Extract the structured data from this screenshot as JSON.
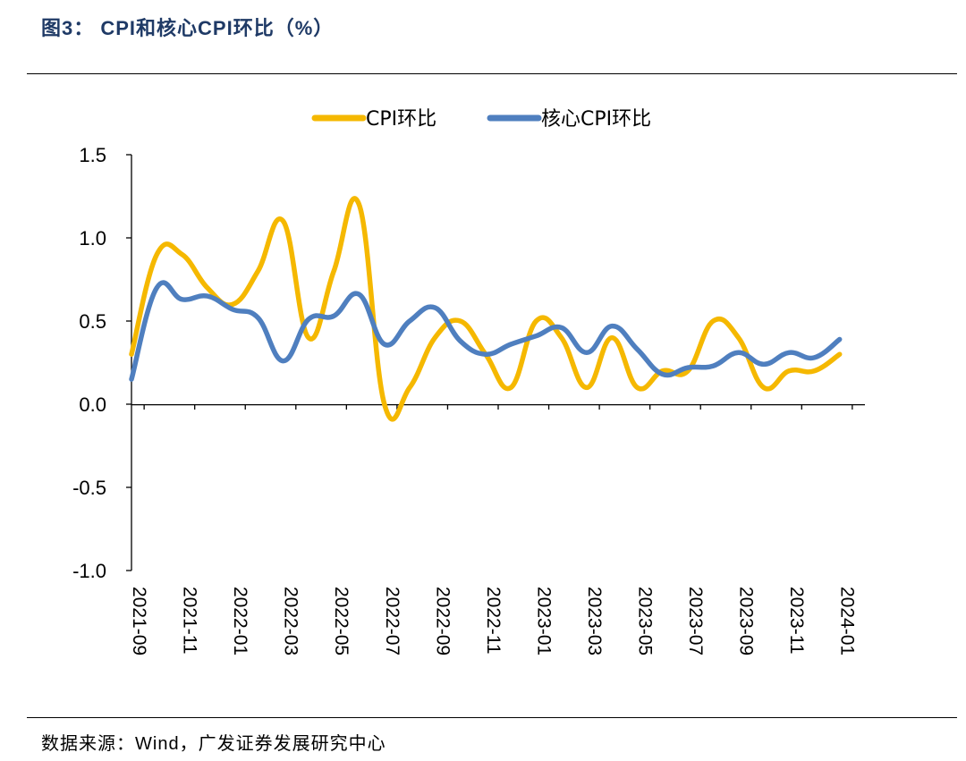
{
  "figure": {
    "title": "图3： CPI和核心CPI环比（%）",
    "source": "数据来源：Wind，广发证券发展研究中心"
  },
  "colors": {
    "cpi": "#f5b800",
    "core": "#4f7fbf"
  },
  "chart_data": {
    "type": "line",
    "title": "",
    "xlabel": "",
    "ylabel": "",
    "ylim": [
      -1.0,
      1.5
    ],
    "yticks": [
      "1.5",
      "1.0",
      "0.5",
      "0.0",
      "-0.5",
      "-1.0"
    ],
    "grid": false,
    "legend_position": "top",
    "x": [
      "2021-09",
      "2021-10",
      "2021-11",
      "2021-12",
      "2022-01",
      "2022-02",
      "2022-03",
      "2022-04",
      "2022-05",
      "2022-06",
      "2022-07",
      "2022-08",
      "2022-09",
      "2022-10",
      "2022-11",
      "2022-12",
      "2023-01",
      "2023-02",
      "2023-03",
      "2023-04",
      "2023-05",
      "2023-06",
      "2023-07",
      "2023-08",
      "2023-09",
      "2023-10",
      "2023-11",
      "2023-12",
      "2024-01"
    ],
    "xtick_labels": [
      "2021-09",
      "2021-11",
      "2022-01",
      "2022-03",
      "2022-05",
      "2022-07",
      "2022-09",
      "2022-11",
      "2023-01",
      "2023-03",
      "2023-05",
      "2023-07",
      "2023-09",
      "2023-11",
      "2024-01"
    ],
    "series": [
      {
        "name": "CPI环比",
        "color": "#f5b800",
        "values": [
          0.3,
          0.9,
          0.9,
          0.7,
          0.6,
          0.8,
          1.1,
          0.4,
          0.8,
          1.2,
          0.0,
          0.1,
          0.4,
          0.5,
          0.3,
          0.1,
          0.5,
          0.4,
          0.1,
          0.4,
          0.1,
          0.2,
          0.2,
          0.5,
          0.4,
          0.1,
          0.2,
          0.2,
          0.3
        ]
      },
      {
        "name": "核心CPI环比",
        "color": "#4f7fbf",
        "values": [
          0.15,
          0.7,
          0.63,
          0.65,
          0.57,
          0.52,
          0.26,
          0.51,
          0.53,
          0.66,
          0.36,
          0.5,
          0.58,
          0.38,
          0.3,
          0.36,
          0.41,
          0.46,
          0.31,
          0.47,
          0.33,
          0.18,
          0.22,
          0.23,
          0.31,
          0.24,
          0.31,
          0.28,
          0.39
        ]
      }
    ]
  }
}
